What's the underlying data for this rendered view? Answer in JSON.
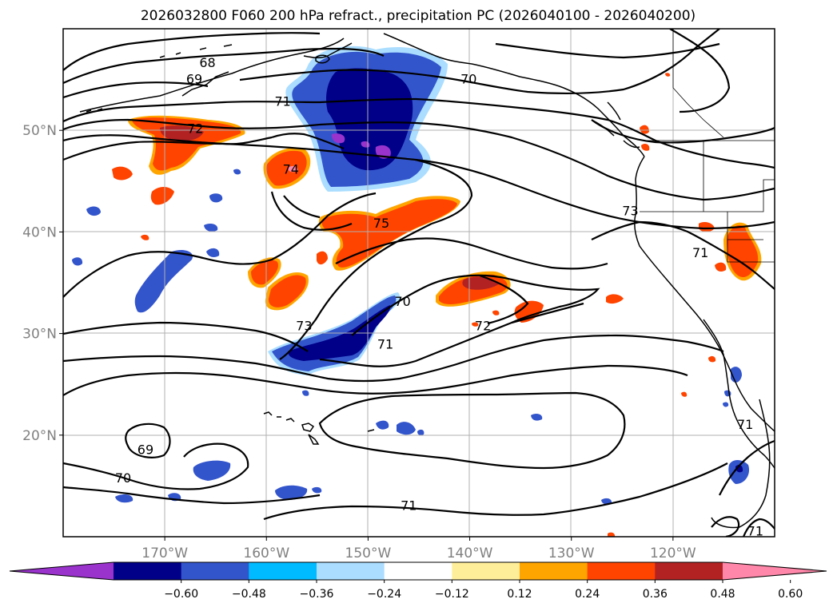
{
  "chart_data": {
    "type": "contour-map",
    "title": "2026032800 F060 200 hPa refract., precipitation PC (2026040100 - 2026040200)",
    "x_axis": {
      "range_deg": [
        -180,
        -110
      ],
      "ticks": [
        {
          "lon": -170,
          "label": "170°W"
        },
        {
          "lon": -160,
          "label": "160°W"
        },
        {
          "lon": -150,
          "label": "150°W"
        },
        {
          "lon": -140,
          "label": "140°W"
        },
        {
          "lon": -130,
          "label": "130°W"
        },
        {
          "lon": -120,
          "label": "120°W"
        }
      ]
    },
    "y_axis": {
      "range_deg": [
        10,
        60
      ],
      "ticks": [
        {
          "lat": 20,
          "label": "20°N"
        },
        {
          "lat": 30,
          "label": "30°N"
        },
        {
          "lat": 40,
          "label": "40°N"
        },
        {
          "lat": 50,
          "label": "50°N"
        }
      ]
    },
    "contour_labels": [
      {
        "text": "68",
        "lon": -165.8,
        "lat": 56.7
      },
      {
        "text": "69",
        "lon": -167.1,
        "lat": 55.1
      },
      {
        "text": "70",
        "lon": -140.1,
        "lat": 55.1
      },
      {
        "text": "71",
        "lon": -158.4,
        "lat": 52.9
      },
      {
        "text": "72",
        "lon": -167.0,
        "lat": 50.2
      },
      {
        "text": "74",
        "lon": -157.6,
        "lat": 46.2
      },
      {
        "text": "75",
        "lon": -148.7,
        "lat": 40.9
      },
      {
        "text": "73",
        "lon": -124.2,
        "lat": 42.1
      },
      {
        "text": "71",
        "lon": -117.3,
        "lat": 38.0
      },
      {
        "text": "70",
        "lon": -146.6,
        "lat": 33.2
      },
      {
        "text": "73",
        "lon": -156.3,
        "lat": 30.8
      },
      {
        "text": "72",
        "lon": -138.7,
        "lat": 30.8
      },
      {
        "text": "71",
        "lon": -148.3,
        "lat": 29.0
      },
      {
        "text": "69",
        "lon": -171.9,
        "lat": 18.6
      },
      {
        "text": "70",
        "lon": -174.1,
        "lat": 15.8
      },
      {
        "text": "71",
        "lon": -146.0,
        "lat": 13.1
      },
      {
        "text": "71",
        "lon": -112.9,
        "lat": 21.1
      },
      {
        "text": "71",
        "lon": -111.9,
        "lat": 10.6
      }
    ],
    "colorbar": {
      "ticks": [
        "−0.60",
        "−0.48",
        "−0.36",
        "−0.24",
        "−0.12",
        "0.12",
        "0.24",
        "0.36",
        "0.48",
        "0.60"
      ],
      "colors": [
        "#9933cc",
        "#000088",
        "#3355cc",
        "#00bbff",
        "#aaddff",
        "#ffffff",
        "#ffee99",
        "#ffa500",
        "#ff4400",
        "#b22222",
        "#ff88aa"
      ],
      "extend": "both"
    }
  },
  "colors": {
    "neg_060": "#9933cc",
    "neg_048": "#000088",
    "neg_036": "#3355cc",
    "neg_024": "#00bbff",
    "neg_012": "#aaddff",
    "pos_024": "#ffa500",
    "pos_036": "#ff4400",
    "pos_048": "#b22222",
    "pos_060": "#ff88aa"
  }
}
